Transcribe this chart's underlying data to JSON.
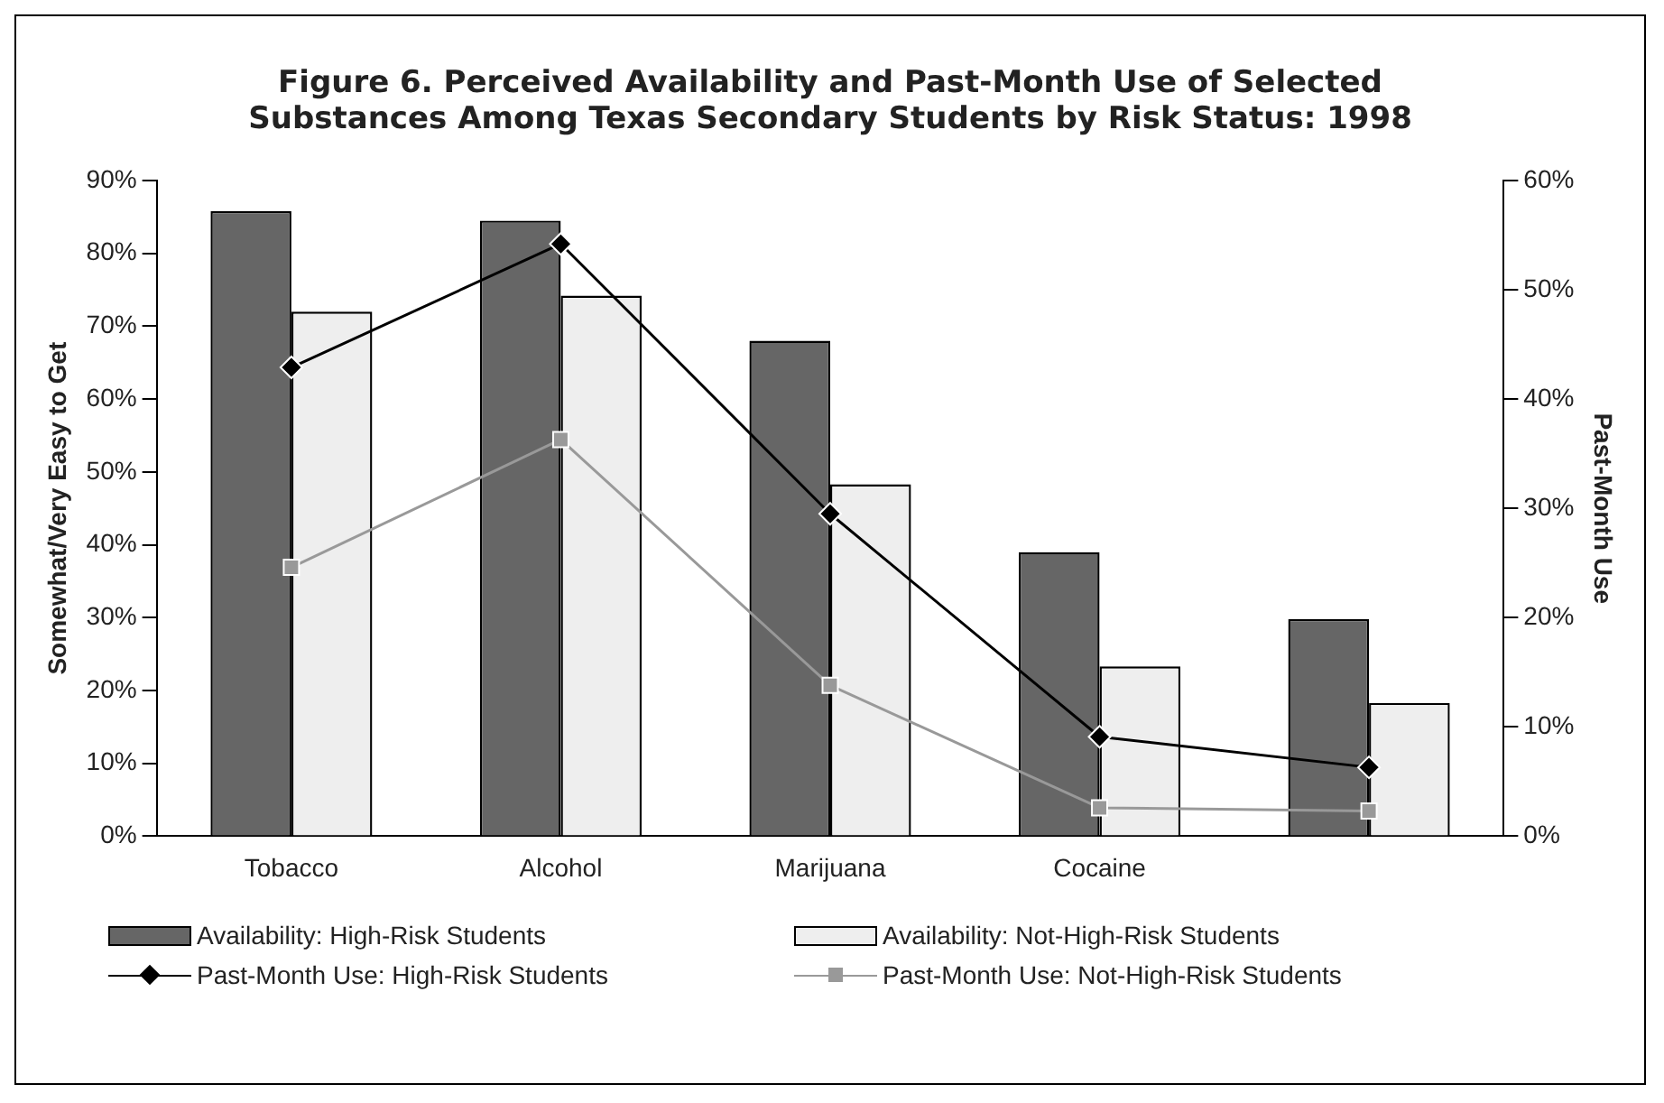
{
  "chart_data": {
    "type": "bar",
    "title": "Figure 6. Perceived Availability and Past-Month Use of Selected Substances Among Texas Secondary Students by Risk Status: 1998",
    "ylabel": "Somewhat/Very Easy to Get",
    "y2label": "Past-Month Use",
    "categories": [
      "Tobacco",
      "Alcohol",
      "Marijuana",
      "Cocaine",
      null
    ],
    "series": [
      {
        "name": "Availability: High-Risk Students",
        "color": "#666666",
        "values": [
          85.8,
          84.5,
          68,
          39,
          29.8
        ]
      },
      {
        "name": "Availability: Not-High-Risk Students",
        "color": "#eeeeee",
        "values": [
          72,
          74.2,
          48.3,
          23.3,
          18.3
        ]
      },
      {
        "name": "Past-Month Use: High-Risk Students",
        "type": "line",
        "axis": "y2",
        "color": "#000000",
        "marker": "diamond",
        "values": [
          42.9,
          54.2,
          29.5,
          9.1,
          6.3
        ]
      },
      {
        "name": "Past-Month Use: Not-High-Risk Students",
        "type": "line",
        "axis": "y2",
        "color": "#999999",
        "marker": "square",
        "values": [
          24.6,
          36.3,
          13.8,
          2.6,
          2.3
        ]
      }
    ],
    "ylim": [
      0,
      90
    ],
    "yticks": [
      {
        "value": 0,
        "label": "0%"
      },
      {
        "value": 10,
        "label": "10%"
      },
      {
        "value": 20,
        "label": "20%"
      },
      {
        "value": 30,
        "label": "30%"
      },
      {
        "value": 40,
        "label": "40%"
      },
      {
        "value": 50,
        "label": "50%"
      },
      {
        "value": 60,
        "label": "60%"
      },
      {
        "value": 70,
        "label": "70%"
      },
      {
        "value": 80,
        "label": "80%"
      },
      {
        "value": 90,
        "label": "90%"
      }
    ],
    "y2lim": [
      0,
      60
    ],
    "y2ticks": [
      {
        "value": 0,
        "label": "0%"
      },
      {
        "value": 10,
        "label": "10%"
      },
      {
        "value": 20,
        "label": "20%"
      },
      {
        "value": 30,
        "label": "30%"
      },
      {
        "value": 40,
        "label": "40%"
      },
      {
        "value": 50,
        "label": "50%"
      },
      {
        "value": 60,
        "label": "60%"
      }
    ],
    "grid": false,
    "legend": "bottom"
  }
}
